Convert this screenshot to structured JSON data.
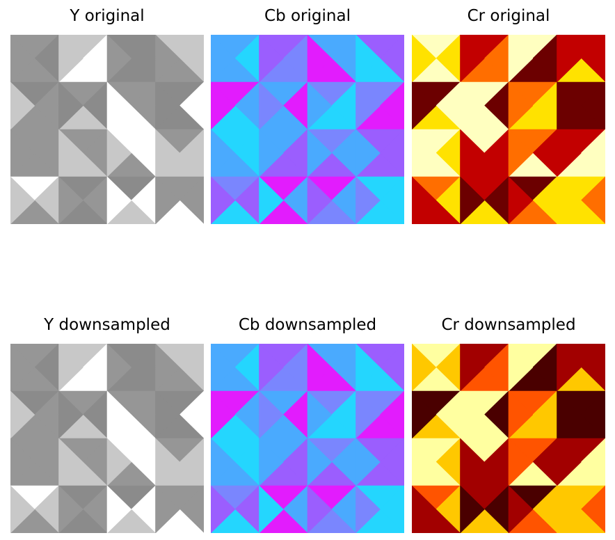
{
  "chart_data": [
    {
      "type": "heatmap",
      "title": "Y original",
      "axes": "off",
      "grid": false,
      "cell_grid": {
        "rows": 4,
        "cols": 4
      },
      "palette": [
        "#606060",
        "#8b8b8b",
        "#969696",
        "#c8c8c8",
        "#ffffff"
      ],
      "cells": [
        [
          [
            2,
            1,
            2,
            2
          ],
          [
            3,
            4,
            4,
            3
          ],
          [
            1,
            1,
            1,
            2
          ],
          [
            3,
            3,
            2,
            2
          ]
        ],
        [
          [
            1,
            2,
            2,
            3
          ],
          [
            2,
            1,
            3,
            1
          ],
          [
            2,
            2,
            4,
            4
          ],
          [
            1,
            4,
            1,
            1
          ]
        ],
        [
          [
            2,
            2,
            2,
            2
          ],
          [
            2,
            2,
            3,
            3
          ],
          [
            4,
            4,
            2,
            3
          ],
          [
            2,
            3,
            3,
            3
          ]
        ],
        [
          [
            4,
            3,
            2,
            3
          ],
          [
            1,
            2,
            1,
            2
          ],
          [
            1,
            4,
            3,
            4
          ],
          [
            2,
            2,
            4,
            2
          ]
        ]
      ]
    },
    {
      "type": "heatmap",
      "title": "Cb original",
      "axes": "off",
      "grid": false,
      "cell_grid": {
        "rows": 4,
        "cols": 4
      },
      "palette": [
        "#24d6fe",
        "#4aaafe",
        "#7a86fe",
        "#9b5efe",
        "#e21cfd"
      ],
      "cells": [
        [
          [
            1,
            0,
            1,
            1
          ],
          [
            3,
            2,
            2,
            3
          ],
          [
            1,
            1,
            4,
            4
          ],
          [
            3,
            3,
            0,
            0
          ]
        ],
        [
          [
            4,
            1,
            0,
            4
          ],
          [
            1,
            4,
            1,
            2
          ],
          [
            2,
            0,
            0,
            1
          ],
          [
            2,
            4,
            4,
            2
          ]
        ],
        [
          [
            0,
            0,
            1,
            1
          ],
          [
            1,
            3,
            3,
            1
          ],
          [
            2,
            1,
            3,
            1
          ],
          [
            3,
            3,
            3,
            1
          ]
        ],
        [
          [
            2,
            3,
            0,
            3
          ],
          [
            4,
            1,
            4,
            0
          ],
          [
            4,
            1,
            2,
            3
          ],
          [
            0,
            0,
            0,
            2
          ]
        ]
      ]
    },
    {
      "type": "heatmap",
      "title": "Cr original",
      "axes": "off",
      "grid": false,
      "cell_grid": {
        "rows": 4,
        "cols": 4
      },
      "palette": [
        "#6c0000",
        "#c20000",
        "#ff6e00",
        "#ffe200",
        "#ffffc0"
      ],
      "cells": [
        [
          [
            4,
            3,
            4,
            3
          ],
          [
            1,
            2,
            2,
            1
          ],
          [
            4,
            0,
            0,
            4
          ],
          [
            1,
            1,
            3,
            1
          ]
        ],
        [
          [
            0,
            4,
            3,
            0
          ],
          [
            4,
            0,
            4,
            4
          ],
          [
            2,
            3,
            3,
            2
          ],
          [
            0,
            0,
            0,
            0
          ]
        ],
        [
          [
            4,
            3,
            4,
            4
          ],
          [
            4,
            1,
            1,
            1
          ],
          [
            2,
            1,
            4,
            2
          ],
          [
            1,
            4,
            4,
            1
          ]
        ],
        [
          [
            2,
            3,
            1,
            1
          ],
          [
            1,
            0,
            3,
            0
          ],
          [
            0,
            3,
            2,
            1
          ],
          [
            3,
            2,
            3,
            3
          ]
        ]
      ]
    },
    {
      "type": "heatmap",
      "title": "Y downsampled",
      "axes": "off",
      "grid": false,
      "cell_grid": {
        "rows": 4,
        "cols": 4
      },
      "palette": [
        "#606060",
        "#8b8b8b",
        "#969696",
        "#c8c8c8",
        "#ffffff"
      ],
      "cells": [
        [
          [
            2,
            1,
            2,
            2
          ],
          [
            3,
            4,
            4,
            3
          ],
          [
            1,
            1,
            1,
            2
          ],
          [
            3,
            3,
            2,
            2
          ]
        ],
        [
          [
            1,
            2,
            2,
            3
          ],
          [
            2,
            1,
            3,
            1
          ],
          [
            2,
            2,
            4,
            4
          ],
          [
            1,
            4,
            1,
            1
          ]
        ],
        [
          [
            2,
            2,
            2,
            2
          ],
          [
            2,
            2,
            3,
            3
          ],
          [
            4,
            4,
            2,
            3
          ],
          [
            2,
            3,
            3,
            3
          ]
        ],
        [
          [
            4,
            3,
            2,
            3
          ],
          [
            1,
            2,
            1,
            2
          ],
          [
            1,
            4,
            3,
            4
          ],
          [
            2,
            2,
            4,
            2
          ]
        ]
      ]
    },
    {
      "type": "heatmap",
      "title": "Cb downsampled",
      "axes": "off",
      "grid": false,
      "cell_grid": {
        "rows": 4,
        "cols": 4
      },
      "palette": [
        "#24d6fe",
        "#4aaafe",
        "#7a86fe",
        "#9b5efe",
        "#e21cfd"
      ],
      "cells": [
        [
          [
            1,
            0,
            1,
            1
          ],
          [
            3,
            2,
            2,
            3
          ],
          [
            1,
            1,
            4,
            4
          ],
          [
            3,
            3,
            0,
            0
          ]
        ],
        [
          [
            4,
            1,
            0,
            4
          ],
          [
            1,
            4,
            1,
            2
          ],
          [
            2,
            0,
            0,
            1
          ],
          [
            2,
            4,
            4,
            2
          ]
        ],
        [
          [
            0,
            0,
            1,
            1
          ],
          [
            1,
            3,
            3,
            1
          ],
          [
            2,
            1,
            3,
            1
          ],
          [
            3,
            3,
            3,
            1
          ]
        ],
        [
          [
            2,
            3,
            0,
            3
          ],
          [
            4,
            1,
            4,
            0
          ],
          [
            4,
            1,
            2,
            3
          ],
          [
            0,
            0,
            0,
            2
          ]
        ]
      ]
    },
    {
      "type": "heatmap",
      "title": "Cr downsampled",
      "axes": "off",
      "grid": false,
      "cell_grid": {
        "rows": 4,
        "cols": 4
      },
      "palette": [
        "#4a0000",
        "#a20000",
        "#ff5400",
        "#ffc800",
        "#ffffa0"
      ],
      "cells": [
        [
          [
            4,
            3,
            4,
            3
          ],
          [
            1,
            2,
            2,
            1
          ],
          [
            4,
            0,
            0,
            4
          ],
          [
            1,
            1,
            3,
            1
          ]
        ],
        [
          [
            0,
            4,
            3,
            0
          ],
          [
            4,
            0,
            4,
            4
          ],
          [
            2,
            3,
            3,
            2
          ],
          [
            0,
            0,
            0,
            0
          ]
        ],
        [
          [
            4,
            3,
            4,
            4
          ],
          [
            4,
            1,
            1,
            1
          ],
          [
            2,
            1,
            4,
            2
          ],
          [
            1,
            4,
            4,
            1
          ]
        ],
        [
          [
            2,
            3,
            1,
            1
          ],
          [
            1,
            0,
            3,
            0
          ],
          [
            0,
            3,
            2,
            1
          ],
          [
            3,
            2,
            3,
            3
          ]
        ]
      ]
    }
  ]
}
